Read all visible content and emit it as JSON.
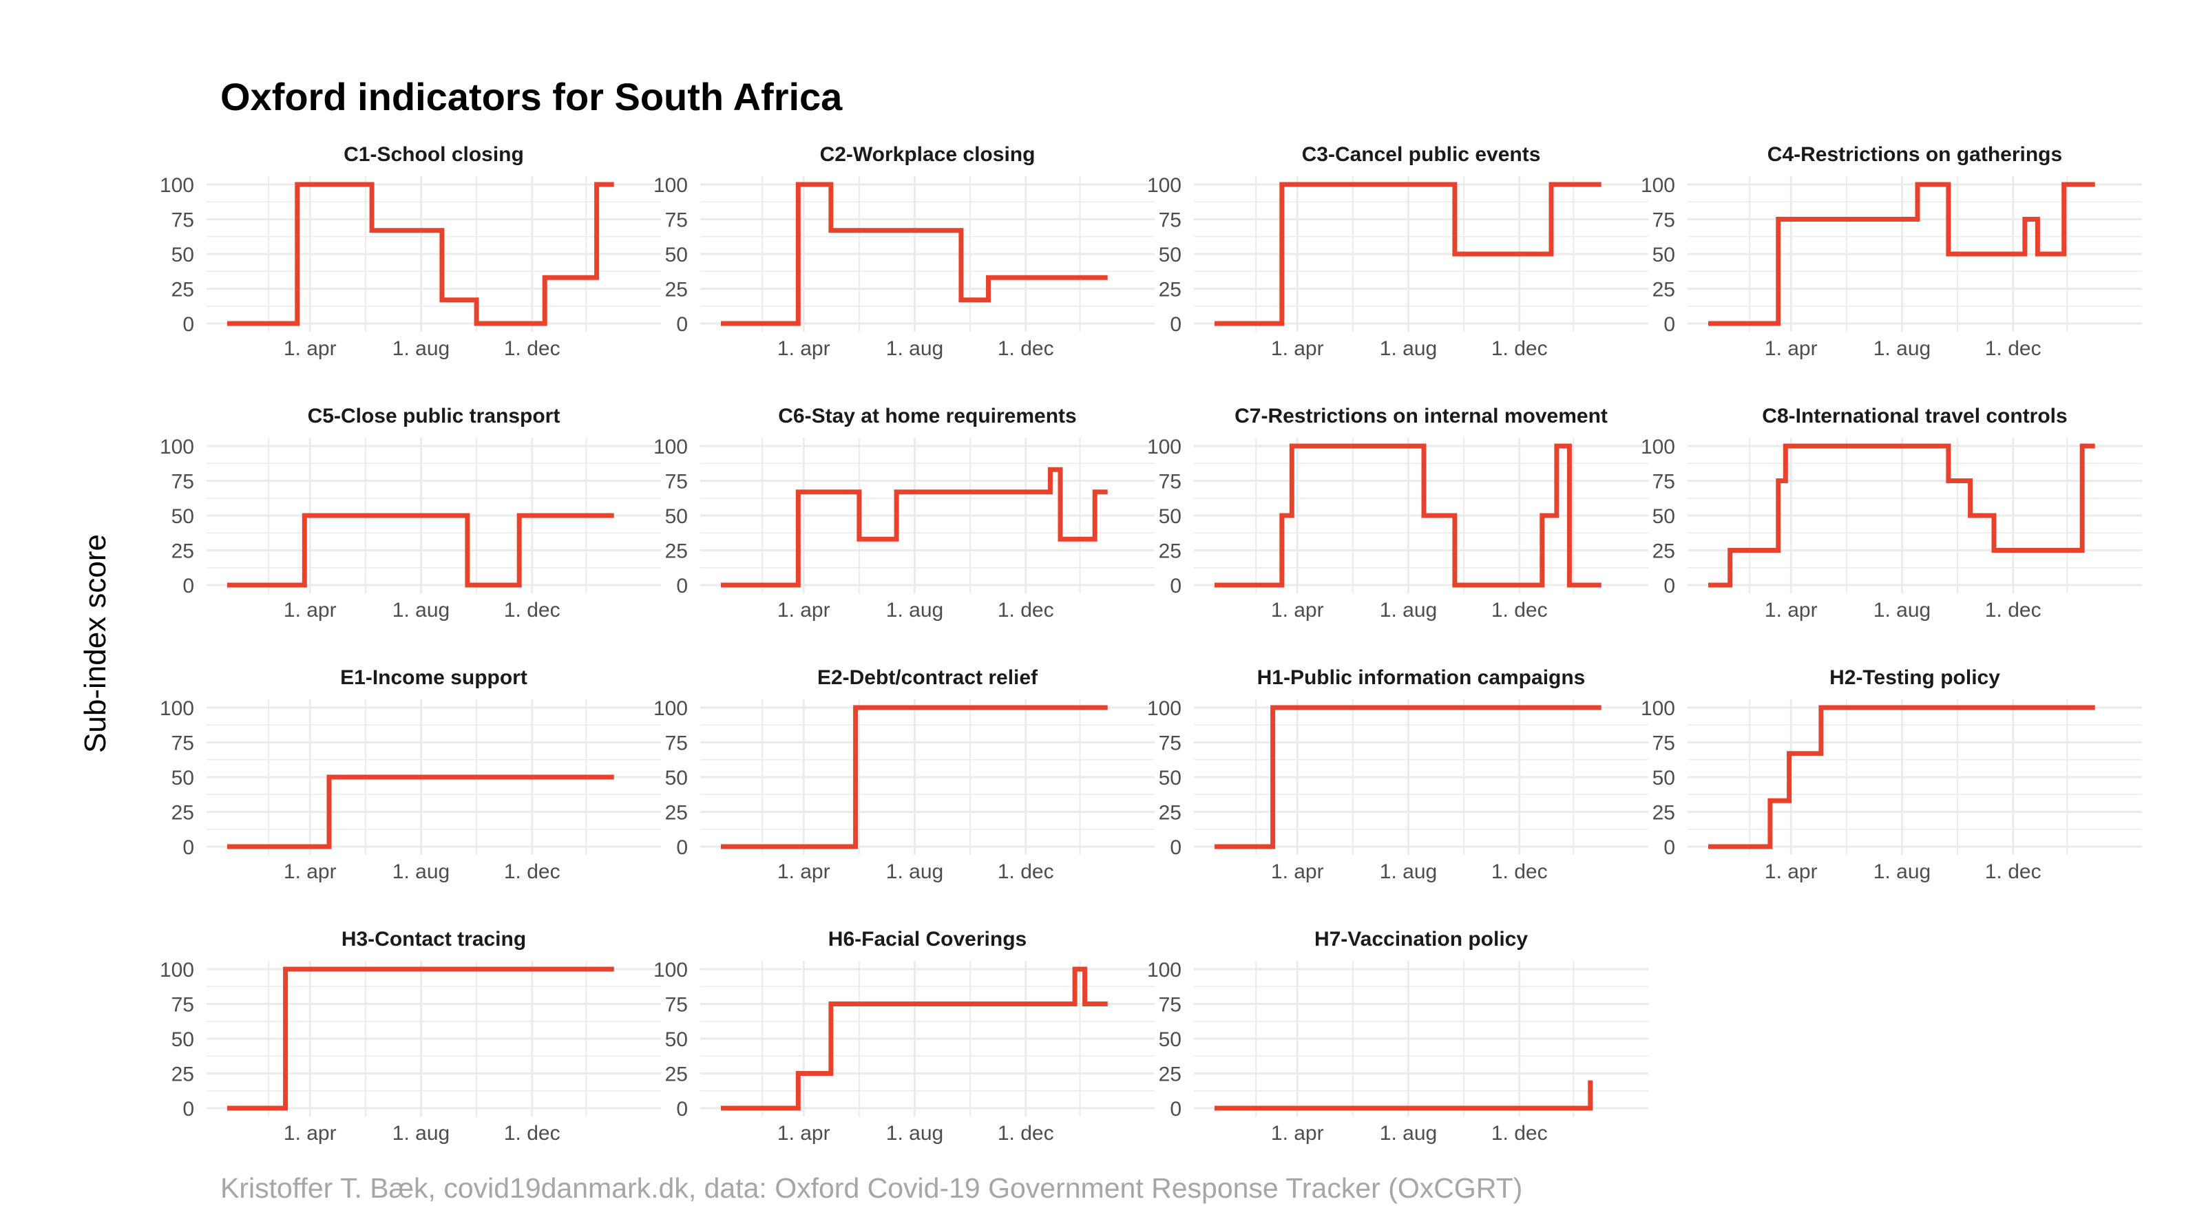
{
  "title": "Oxford indicators for South Africa",
  "ylabel": "Sub-index score",
  "caption": "Kristoffer T. Bæk, covid19danmark.dk, data: Oxford Covid-19 Government Response Tracker (OxCGRT)",
  "colors": {
    "line": "#e8412c",
    "grid": "#ebebeb",
    "title": "#000000",
    "caption": "#a6a6a6",
    "ticks": "#4d4d4d"
  },
  "chart_data": {
    "type": "line",
    "layout": "facet-wrap-4-columns",
    "x_range": [
      "2020-01-01",
      "2021-03-30"
    ],
    "ylim": [
      0,
      100
    ],
    "y_ticks": [
      0,
      25,
      50,
      75,
      100
    ],
    "x_ticks": [
      {
        "date": "2020-04-01",
        "label": "1. apr"
      },
      {
        "date": "2020-08-01",
        "label": "1. aug"
      },
      {
        "date": "2020-12-01",
        "label": "1. dec"
      }
    ],
    "series": [
      {
        "name": "C1-School closing",
        "points": [
          [
            "2020-01-01",
            0
          ],
          [
            "2020-03-18",
            0
          ],
          [
            "2020-03-18",
            100
          ],
          [
            "2020-06-08",
            100
          ],
          [
            "2020-06-08",
            67
          ],
          [
            "2020-08-24",
            67
          ],
          [
            "2020-08-24",
            17
          ],
          [
            "2020-10-01",
            17
          ],
          [
            "2020-10-01",
            0
          ],
          [
            "2020-12-15",
            0
          ],
          [
            "2020-12-15",
            33
          ],
          [
            "2021-02-10",
            33
          ],
          [
            "2021-02-10",
            100
          ],
          [
            "2021-03-01",
            100
          ]
        ]
      },
      {
        "name": "C2-Workplace closing",
        "points": [
          [
            "2020-01-01",
            0
          ],
          [
            "2020-03-26",
            0
          ],
          [
            "2020-03-26",
            100
          ],
          [
            "2020-05-01",
            100
          ],
          [
            "2020-05-01",
            67
          ],
          [
            "2020-09-21",
            67
          ],
          [
            "2020-09-21",
            17
          ],
          [
            "2020-10-21",
            17
          ],
          [
            "2020-10-21",
            33
          ],
          [
            "2021-03-01",
            33
          ]
        ]
      },
      {
        "name": "C3-Cancel public events",
        "points": [
          [
            "2020-01-01",
            0
          ],
          [
            "2020-03-15",
            0
          ],
          [
            "2020-03-15",
            100
          ],
          [
            "2020-09-21",
            100
          ],
          [
            "2020-09-21",
            50
          ],
          [
            "2021-01-05",
            50
          ],
          [
            "2021-01-05",
            100
          ],
          [
            "2021-03-01",
            100
          ]
        ]
      },
      {
        "name": "C4-Restrictions on gatherings",
        "points": [
          [
            "2020-01-01",
            0
          ],
          [
            "2020-03-18",
            0
          ],
          [
            "2020-03-18",
            75
          ],
          [
            "2020-08-18",
            75
          ],
          [
            "2020-08-18",
            100
          ],
          [
            "2020-09-21",
            100
          ],
          [
            "2020-09-21",
            50
          ],
          [
            "2020-12-14",
            50
          ],
          [
            "2020-12-14",
            75
          ],
          [
            "2020-12-28",
            75
          ],
          [
            "2020-12-28",
            50
          ],
          [
            "2021-01-26",
            50
          ],
          [
            "2021-01-26",
            100
          ],
          [
            "2021-03-01",
            100
          ]
        ]
      },
      {
        "name": "C5-Close public transport",
        "points": [
          [
            "2020-01-01",
            0
          ],
          [
            "2020-03-26",
            0
          ],
          [
            "2020-03-26",
            50
          ],
          [
            "2020-09-21",
            50
          ],
          [
            "2020-09-21",
            0
          ],
          [
            "2020-11-17",
            0
          ],
          [
            "2020-11-17",
            50
          ],
          [
            "2021-03-01",
            50
          ]
        ]
      },
      {
        "name": "C6-Stay at home requirements",
        "points": [
          [
            "2020-01-01",
            0
          ],
          [
            "2020-03-26",
            0
          ],
          [
            "2020-03-26",
            67
          ],
          [
            "2020-06-01",
            67
          ],
          [
            "2020-06-01",
            33
          ],
          [
            "2020-07-12",
            33
          ],
          [
            "2020-07-12",
            67
          ],
          [
            "2020-12-28",
            67
          ],
          [
            "2020-12-28",
            83
          ],
          [
            "2021-01-08",
            83
          ],
          [
            "2021-01-08",
            33
          ],
          [
            "2021-02-15",
            33
          ],
          [
            "2021-02-15",
            67
          ],
          [
            "2021-03-01",
            67
          ]
        ]
      },
      {
        "name": "C7-Restrictions on internal movement",
        "points": [
          [
            "2020-01-01",
            0
          ],
          [
            "2020-03-15",
            0
          ],
          [
            "2020-03-15",
            50
          ],
          [
            "2020-03-26",
            50
          ],
          [
            "2020-03-26",
            100
          ],
          [
            "2020-08-18",
            100
          ],
          [
            "2020-08-18",
            50
          ],
          [
            "2020-09-21",
            50
          ],
          [
            "2020-09-21",
            0
          ],
          [
            "2020-12-26",
            0
          ],
          [
            "2020-12-26",
            50
          ],
          [
            "2021-01-11",
            50
          ],
          [
            "2021-01-11",
            100
          ],
          [
            "2021-01-25",
            100
          ],
          [
            "2021-01-25",
            0
          ],
          [
            "2021-03-01",
            0
          ]
        ]
      },
      {
        "name": "C8-International travel controls",
        "points": [
          [
            "2020-01-01",
            0
          ],
          [
            "2020-01-25",
            0
          ],
          [
            "2020-01-25",
            25
          ],
          [
            "2020-03-18",
            25
          ],
          [
            "2020-03-18",
            75
          ],
          [
            "2020-03-26",
            75
          ],
          [
            "2020-03-26",
            100
          ],
          [
            "2020-09-21",
            100
          ],
          [
            "2020-09-21",
            75
          ],
          [
            "2020-10-15",
            75
          ],
          [
            "2020-10-15",
            50
          ],
          [
            "2020-11-10",
            50
          ],
          [
            "2020-11-10",
            25
          ],
          [
            "2021-02-15",
            25
          ],
          [
            "2021-02-15",
            100
          ],
          [
            "2021-03-01",
            100
          ]
        ]
      },
      {
        "name": "E1-Income support",
        "points": [
          [
            "2020-01-01",
            0
          ],
          [
            "2020-04-22",
            0
          ],
          [
            "2020-04-22",
            50
          ],
          [
            "2021-03-01",
            50
          ]
        ]
      },
      {
        "name": "E2-Debt/contract relief",
        "points": [
          [
            "2020-01-01",
            0
          ],
          [
            "2020-05-28",
            0
          ],
          [
            "2020-05-28",
            100
          ],
          [
            "2021-03-01",
            100
          ]
        ]
      },
      {
        "name": "H1-Public information campaigns",
        "points": [
          [
            "2020-01-01",
            0
          ],
          [
            "2020-03-05",
            0
          ],
          [
            "2020-03-05",
            100
          ],
          [
            "2021-03-01",
            100
          ]
        ]
      },
      {
        "name": "H2-Testing policy",
        "points": [
          [
            "2020-01-01",
            0
          ],
          [
            "2020-03-09",
            0
          ],
          [
            "2020-03-09",
            33
          ],
          [
            "2020-03-30",
            33
          ],
          [
            "2020-03-30",
            67
          ],
          [
            "2020-05-04",
            67
          ],
          [
            "2020-05-04",
            100
          ],
          [
            "2021-03-01",
            100
          ]
        ]
      },
      {
        "name": "H3-Contact tracing",
        "points": [
          [
            "2020-01-01",
            0
          ],
          [
            "2020-03-05",
            0
          ],
          [
            "2020-03-05",
            100
          ],
          [
            "2021-03-01",
            100
          ]
        ]
      },
      {
        "name": "H6-Facial Coverings",
        "points": [
          [
            "2020-01-01",
            0
          ],
          [
            "2020-03-26",
            0
          ],
          [
            "2020-03-26",
            25
          ],
          [
            "2020-05-01",
            25
          ],
          [
            "2020-05-01",
            75
          ],
          [
            "2021-01-24",
            75
          ],
          [
            "2021-01-24",
            100
          ],
          [
            "2021-02-04",
            100
          ],
          [
            "2021-02-04",
            75
          ],
          [
            "2021-03-01",
            75
          ]
        ]
      },
      {
        "name": "H7-Vaccination policy",
        "points": [
          [
            "2020-01-01",
            0
          ],
          [
            "2021-02-17",
            0
          ],
          [
            "2021-02-17",
            20
          ]
        ]
      }
    ]
  }
}
